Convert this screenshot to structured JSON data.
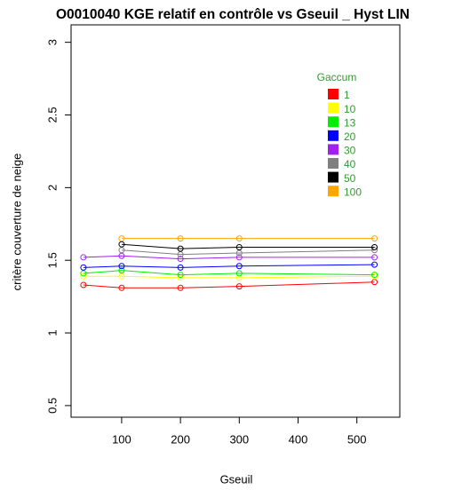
{
  "chart_data": {
    "type": "line",
    "title": "O0010040 KGE relatif en contrôle vs Gseuil _  Hyst LIN",
    "x_label": "Gseuil",
    "y_label": "critère couverture de neige",
    "x": [
      35,
      100,
      200,
      300,
      530
    ],
    "xlim": [
      14,
      573
    ],
    "xticks": [
      100,
      200,
      300,
      400,
      500
    ],
    "ylim": [
      0.42,
      3.12
    ],
    "yticks": [
      0.5,
      1.0,
      1.5,
      2.0,
      2.5,
      3.0
    ],
    "legend_title": "Gaccum",
    "legend_position": "top-right",
    "legend_text_color": "#339933",
    "series": [
      {
        "name": "1",
        "color": "#ff0000",
        "values": [
          1.33,
          1.31,
          1.31,
          1.32,
          1.35
        ]
      },
      {
        "name": "10",
        "color": "#ffff00",
        "values": [
          1.39,
          1.39,
          1.38,
          1.38,
          1.39
        ]
      },
      {
        "name": "13",
        "color": "#00ee00",
        "values": [
          1.41,
          1.43,
          1.4,
          1.41,
          1.4
        ]
      },
      {
        "name": "20",
        "color": "#0000ff",
        "values": [
          1.45,
          1.46,
          1.45,
          1.46,
          1.47
        ]
      },
      {
        "name": "30",
        "color": "#a020f0",
        "values": [
          1.52,
          1.53,
          1.51,
          1.52,
          1.52
        ]
      },
      {
        "name": "40",
        "color": "#808080",
        "values": [
          null,
          1.57,
          1.54,
          1.55,
          1.57
        ]
      },
      {
        "name": "50",
        "color": "#000000",
        "values": [
          null,
          1.61,
          1.58,
          1.59,
          1.59
        ]
      },
      {
        "name": "100",
        "color": "#ffa500",
        "values": [
          null,
          1.65,
          1.65,
          1.65,
          1.65
        ]
      }
    ]
  }
}
